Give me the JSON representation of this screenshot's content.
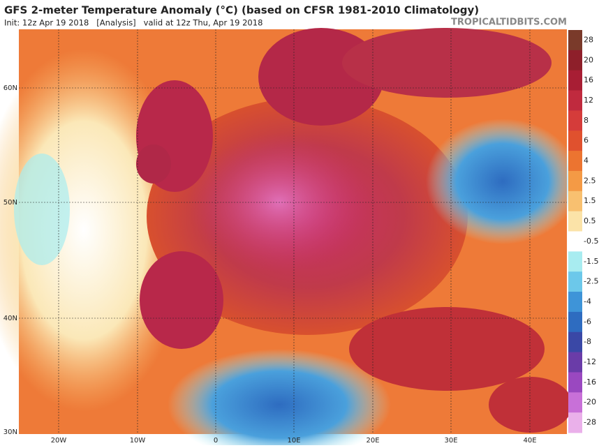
{
  "header": {
    "title": "GFS 2-meter Temperature Anomaly (°C) (based on CFSR 1981-2010 Climatology)",
    "init": "Init: 12z Apr 19 2018   [Analysis]   valid at 12z Thu, Apr 19 2018",
    "credit": "TROPICALTIDBITS.COM"
  },
  "map": {
    "lat_labels": [
      "60N",
      "50N",
      "40N",
      "30N"
    ],
    "lon_labels": [
      "20W",
      "10W",
      "0",
      "10E",
      "20E",
      "30E",
      "40E"
    ]
  },
  "legend": {
    "items": [
      {
        "label": "28",
        "color": "#7a3a2a"
      },
      {
        "label": "20",
        "color": "#8e1f2a"
      },
      {
        "label": "16",
        "color": "#a81e34"
      },
      {
        "label": "12",
        "color": "#c02a3e"
      },
      {
        "label": "8",
        "color": "#d53c3a"
      },
      {
        "label": "6",
        "color": "#e0512e"
      },
      {
        "label": "4",
        "color": "#ec7430"
      },
      {
        "label": "2.5",
        "color": "#f49a45"
      },
      {
        "label": "1.5",
        "color": "#f8c070"
      },
      {
        "label": "0.5",
        "color": "#fbe3a8"
      },
      {
        "label": "-0.5",
        "color": "#ffffff"
      },
      {
        "label": "-1.5",
        "color": "#a8ecf0"
      },
      {
        "label": "-2.5",
        "color": "#6cc8ea"
      },
      {
        "label": "-4",
        "color": "#3e94d8"
      },
      {
        "label": "-6",
        "color": "#2e6cc0"
      },
      {
        "label": "-8",
        "color": "#3a48a6"
      },
      {
        "label": "-12",
        "color": "#6a3ca8"
      },
      {
        "label": "-16",
        "color": "#9a48c0"
      },
      {
        "label": "-20",
        "color": "#c870d8"
      },
      {
        "label": "-28",
        "color": "#eab0ea"
      }
    ]
  }
}
